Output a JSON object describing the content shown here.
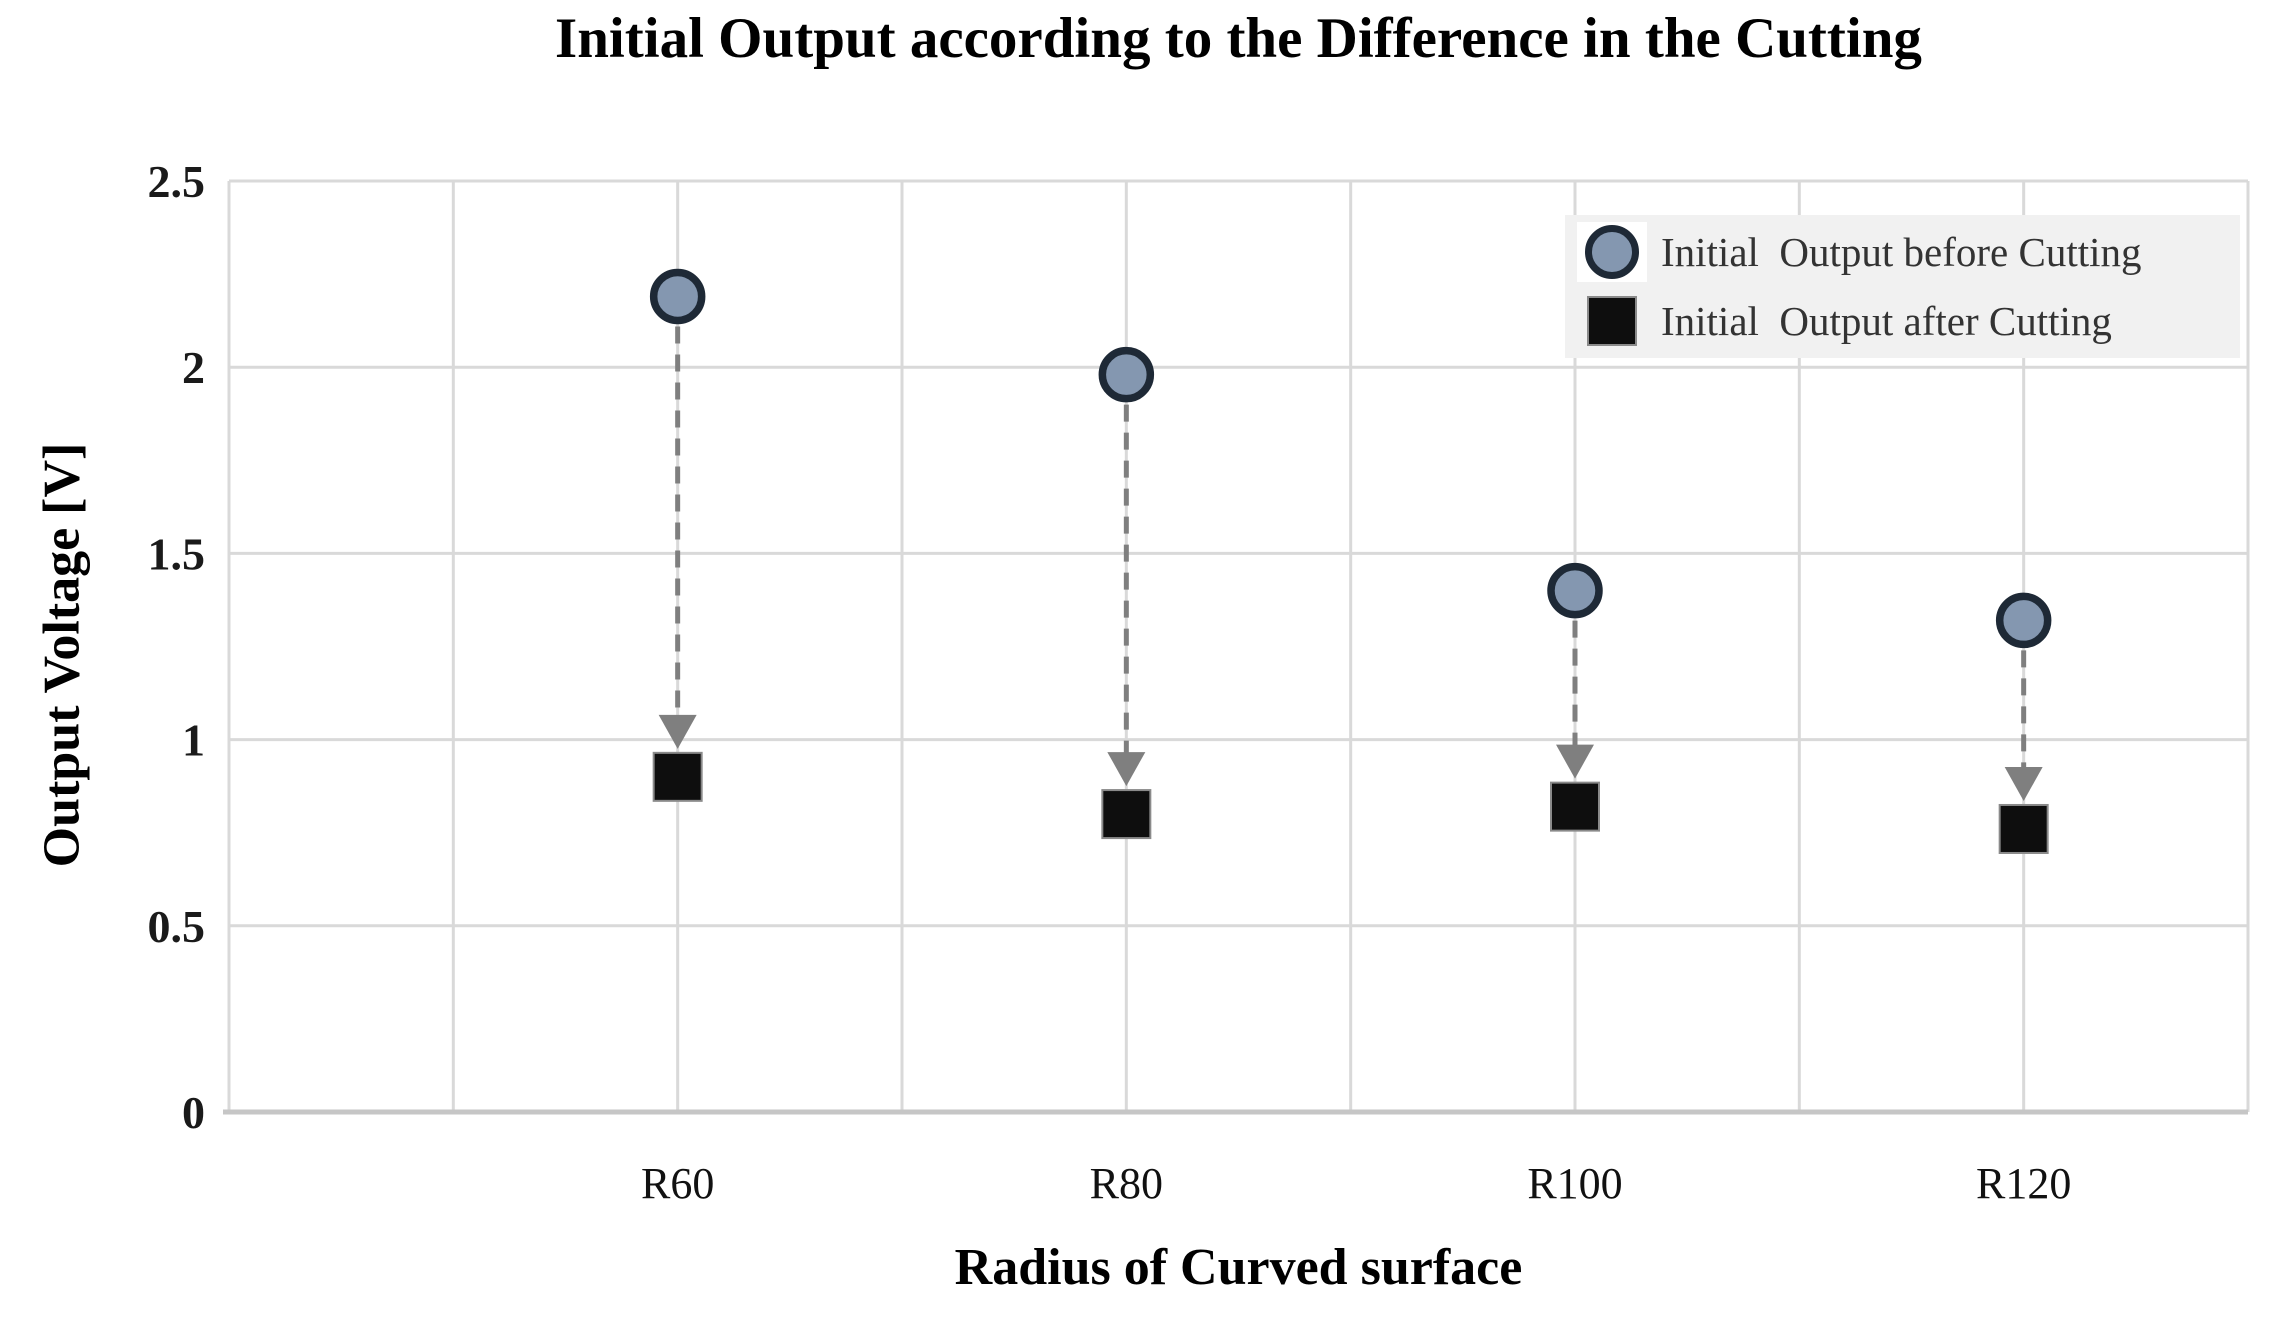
{
  "chart_data": {
    "type": "scatter",
    "title": "Initial Output according to the Difference in the Cutting",
    "xlabel": "Radius of Curved surface",
    "ylabel": "Output Voltage [V]",
    "categories": [
      "R60",
      "R80",
      "R100",
      "R120"
    ],
    "series": [
      {
        "name": "Initial  Output before Cutting",
        "marker": "circle",
        "values": [
          2.19,
          1.98,
          1.4,
          1.32
        ]
      },
      {
        "name": "Initial  Output after Cutting",
        "marker": "square",
        "values": [
          0.9,
          0.8,
          0.82,
          0.76
        ]
      }
    ],
    "ylim": [
      0,
      2.5
    ],
    "ytick_values": [
      0,
      0.5,
      1,
      1.5,
      2,
      2.5
    ],
    "ytick_labels": [
      "0",
      "0.5",
      "1",
      "1.5",
      "2",
      "2.5"
    ],
    "grid": true,
    "legend_position": "top-right",
    "annotations": [
      {
        "type": "arrow",
        "style": "dashed",
        "direction": "down",
        "from_series": 0,
        "to_series": 1,
        "per_category": true
      }
    ],
    "colors": {
      "before_fill": "#8497B0",
      "before_stroke": "#1E2936",
      "after_fill": "#0E0E0E",
      "after_stroke": "#8A8A8A",
      "arrow": "#7F7F7F",
      "grid": "#D9D9D9",
      "axis": "#C6C6C6",
      "legend_bg": "#F1F1F1",
      "tick_text": "#1A1A1A",
      "legend_text": "#333333"
    }
  }
}
